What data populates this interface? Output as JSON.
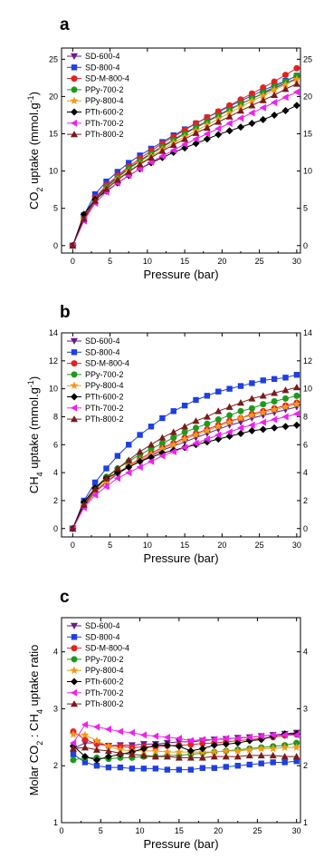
{
  "colors": {
    "SD-600-4": "#6a1a8a",
    "SD-800-4": "#1f3fe0",
    "SD-M-800-4": "#e32222",
    "PPy-700-2": "#1c9a1c",
    "PPy-800-4": "#f19a1a",
    "PTh-600-2": "#000000",
    "PTh-700-2": "#ee22ee",
    "PTh-800-2": "#7a1a1a"
  },
  "markers": {
    "SD-600-4": "triangle-down",
    "SD-800-4": "square",
    "SD-M-800-4": "circle",
    "PPy-700-2": "circle",
    "PPy-800-4": "star",
    "PTh-600-2": "diamond",
    "PTh-700-2": "triangle-left",
    "PTh-800-2": "triangle-up"
  },
  "chart_data": [
    {
      "type": "line",
      "panel": "a",
      "xlabel": "Pressure (bar)",
      "ylabel_parts": [
        "CO",
        "2",
        " uptake (mmol.g",
        "-1",
        ")"
      ],
      "xlim": [
        -1.5,
        30.5
      ],
      "ylim": [
        -1,
        26.5
      ],
      "xticks": [
        0,
        5,
        10,
        15,
        20,
        25,
        30
      ],
      "yticks": [
        0,
        5,
        10,
        15,
        20,
        25
      ],
      "right_ticks": [
        "0",
        "5",
        "10",
        "15",
        "20",
        "25"
      ],
      "legend_position": "top-left",
      "x": [
        0,
        1.5,
        3,
        4.5,
        6,
        7.5,
        9,
        10.5,
        12,
        13.5,
        15,
        16.5,
        18,
        19.5,
        21,
        22.5,
        24,
        25.5,
        27,
        28.5,
        30
      ],
      "series": [
        {
          "name": "SD-600-4",
          "values": [
            0,
            3.8,
            6.3,
            7.9,
            9.2,
            10.4,
            11.4,
            12.4,
            13.3,
            14.2,
            15.1,
            15.9,
            16.7,
            17.5,
            18.3,
            19.0,
            19.7,
            20.4,
            21.1,
            21.8,
            22.4
          ]
        },
        {
          "name": "SD-800-4",
          "values": [
            0,
            4.1,
            6.9,
            8.6,
            9.9,
            11.1,
            12.1,
            13.0,
            13.9,
            14.8,
            15.6,
            16.4,
            17.2,
            17.9,
            18.7,
            19.4,
            20.1,
            20.8,
            21.5,
            22.1,
            22.8
          ]
        },
        {
          "name": "SD-M-800-4",
          "values": [
            0,
            3.8,
            6.4,
            8.1,
            9.4,
            10.6,
            11.7,
            12.7,
            13.7,
            14.6,
            15.5,
            16.4,
            17.2,
            18.0,
            18.8,
            19.6,
            20.4,
            21.2,
            22.0,
            22.9,
            23.8
          ]
        },
        {
          "name": "PPy-700-2",
          "values": [
            0,
            3.6,
            6.1,
            7.8,
            9.1,
            10.3,
            11.3,
            12.3,
            13.2,
            14.1,
            15.0,
            15.8,
            16.6,
            17.4,
            18.2,
            19.0,
            19.7,
            20.5,
            21.3,
            22.0,
            22.8
          ]
        },
        {
          "name": "PPy-800-4",
          "values": [
            0,
            3.5,
            6.0,
            7.6,
            8.9,
            10.0,
            11.0,
            12.0,
            12.9,
            13.8,
            14.6,
            15.4,
            16.2,
            17.0,
            17.8,
            18.6,
            19.4,
            20.1,
            20.9,
            21.6,
            22.3
          ]
        },
        {
          "name": "PTh-600-2",
          "values": [
            0,
            4.2,
            6.2,
            7.3,
            8.4,
            9.4,
            10.3,
            11.1,
            11.8,
            12.5,
            13.1,
            13.7,
            14.3,
            14.9,
            15.4,
            15.9,
            16.4,
            16.9,
            17.5,
            18.1,
            18.8
          ]
        },
        {
          "name": "PTh-700-2",
          "values": [
            0,
            3.3,
            5.7,
            7.2,
            8.4,
            9.4,
            10.3,
            11.2,
            12.0,
            12.8,
            13.6,
            14.3,
            15.0,
            15.7,
            16.4,
            17.1,
            17.8,
            18.5,
            19.2,
            19.9,
            20.6
          ]
        },
        {
          "name": "PTh-800-2",
          "values": [
            0,
            3.6,
            6.0,
            7.6,
            8.8,
            9.9,
            10.9,
            11.8,
            12.7,
            13.5,
            14.3,
            15.1,
            15.8,
            16.6,
            17.3,
            18.1,
            18.8,
            19.5,
            20.2,
            21.0,
            21.7
          ]
        }
      ]
    },
    {
      "type": "line",
      "panel": "b",
      "xlabel": "Pressure (bar)",
      "ylabel_parts": [
        "CH",
        "4",
        " uptake (mmol.g",
        "-1",
        ")"
      ],
      "xlim": [
        -1.5,
        30.5
      ],
      "ylim": [
        -0.6,
        14
      ],
      "xticks": [
        0,
        5,
        10,
        15,
        20,
        25,
        30
      ],
      "yticks": [
        0,
        2,
        4,
        6,
        8,
        10,
        12,
        14
      ],
      "right_ticks": [
        "0",
        "2",
        "4",
        "6",
        "8",
        "10",
        "12",
        "14"
      ],
      "legend_position": "top-left",
      "x": [
        0,
        1.5,
        3,
        4.5,
        6,
        7.5,
        9,
        10.5,
        12,
        13.5,
        15,
        16.5,
        18,
        19.5,
        21,
        22.5,
        24,
        25.5,
        27,
        28.5,
        30
      ],
      "series": [
        {
          "name": "SD-600-4",
          "values": [
            0,
            1.6,
            2.6,
            3.3,
            3.9,
            4.4,
            4.8,
            5.2,
            5.6,
            5.9,
            6.2,
            6.5,
            6.8,
            7.1,
            7.4,
            7.6,
            7.9,
            8.1,
            8.3,
            8.5,
            8.7
          ]
        },
        {
          "name": "SD-800-4",
          "values": [
            0,
            2.0,
            3.3,
            4.3,
            5.2,
            6.0,
            6.7,
            7.3,
            7.9,
            8.4,
            8.8,
            9.2,
            9.5,
            9.8,
            10.0,
            10.2,
            10.4,
            10.6,
            10.7,
            10.8,
            11.0
          ]
        },
        {
          "name": "SD-M-800-4",
          "values": [
            0,
            1.6,
            2.6,
            3.4,
            4.0,
            4.5,
            5.0,
            5.4,
            5.8,
            6.1,
            6.5,
            6.8,
            7.1,
            7.4,
            7.7,
            7.9,
            8.2,
            8.4,
            8.6,
            8.8,
            9.0
          ]
        },
        {
          "name": "PPy-700-2",
          "values": [
            0,
            1.8,
            2.9,
            3.7,
            4.3,
            4.8,
            5.3,
            5.7,
            6.1,
            6.5,
            6.9,
            7.2,
            7.5,
            7.8,
            8.1,
            8.4,
            8.6,
            8.9,
            9.1,
            9.3,
            9.5
          ]
        },
        {
          "name": "PPy-800-4",
          "values": [
            0,
            1.7,
            2.7,
            3.4,
            4.0,
            4.5,
            4.9,
            5.3,
            5.7,
            6.0,
            6.4,
            6.7,
            7.0,
            7.3,
            7.6,
            7.9,
            8.1,
            8.3,
            8.5,
            8.7,
            8.9
          ]
        },
        {
          "name": "PTh-600-2",
          "values": [
            0,
            1.9,
            2.9,
            3.6,
            4.0,
            4.4,
            4.8,
            5.1,
            5.4,
            5.6,
            5.8,
            6.0,
            6.2,
            6.4,
            6.6,
            6.8,
            7.0,
            7.1,
            7.2,
            7.3,
            7.4
          ]
        },
        {
          "name": "PTh-700-2",
          "values": [
            0,
            1.5,
            2.4,
            3.0,
            3.6,
            4.0,
            4.4,
            4.8,
            5.2,
            5.5,
            5.8,
            6.1,
            6.4,
            6.7,
            6.9,
            7.2,
            7.4,
            7.6,
            7.8,
            8.0,
            8.2
          ]
        },
        {
          "name": "PTh-800-2",
          "values": [
            0,
            1.7,
            2.8,
            3.6,
            4.3,
            4.9,
            5.5,
            6.0,
            6.5,
            6.9,
            7.3,
            7.7,
            8.0,
            8.4,
            8.7,
            9.0,
            9.3,
            9.5,
            9.7,
            9.9,
            10.1
          ]
        }
      ]
    },
    {
      "type": "line",
      "panel": "c",
      "xlabel": "Pressure (bar)",
      "ylabel_parts": [
        "Molar CO",
        "2",
        " : CH",
        "4",
        " uptake ratio"
      ],
      "xlim": [
        0,
        30.5
      ],
      "ylim": [
        1,
        4.6
      ],
      "xticks": [
        0,
        5,
        10,
        15,
        20,
        25,
        30
      ],
      "yticks": [
        1,
        2,
        3,
        4
      ],
      "right_ticks": [
        "1",
        "2",
        "3",
        "4"
      ],
      "legend_position": "top-left",
      "x": [
        1.5,
        3,
        4.5,
        6,
        7.5,
        9,
        10.5,
        12,
        13.5,
        15,
        16.5,
        18,
        19.5,
        21,
        22.5,
        24,
        25.5,
        27,
        28.5,
        30
      ],
      "series": [
        {
          "name": "SD-600-4",
          "values": [
            2.3,
            2.4,
            2.4,
            2.35,
            2.36,
            2.36,
            2.38,
            2.38,
            2.4,
            2.42,
            2.42,
            2.44,
            2.46,
            2.47,
            2.49,
            2.5,
            2.52,
            2.54,
            2.56,
            2.58
          ]
        },
        {
          "name": "SD-800-4",
          "values": [
            2.2,
            2.06,
            2.0,
            1.97,
            1.97,
            1.95,
            1.95,
            1.95,
            1.93,
            1.93,
            1.93,
            1.96,
            1.96,
            1.98,
            2.0,
            2.02,
            2.04,
            2.06,
            2.06,
            2.08
          ]
        },
        {
          "name": "SD-M-800-4",
          "values": [
            2.6,
            2.46,
            2.38,
            2.35,
            2.34,
            2.32,
            2.33,
            2.33,
            2.35,
            2.36,
            2.37,
            2.39,
            2.4,
            2.42,
            2.44,
            2.46,
            2.48,
            2.5,
            2.53,
            2.55
          ]
        },
        {
          "name": "PPy-700-2",
          "values": [
            2.1,
            2.14,
            2.14,
            2.12,
            2.14,
            2.14,
            2.16,
            2.16,
            2.18,
            2.18,
            2.2,
            2.22,
            2.24,
            2.26,
            2.28,
            2.3,
            2.32,
            2.34,
            2.36,
            2.4
          ]
        },
        {
          "name": "PPy-800-4",
          "values": [
            2.55,
            2.54,
            2.44,
            2.34,
            2.28,
            2.26,
            2.26,
            2.26,
            2.24,
            2.24,
            2.24,
            2.24,
            2.24,
            2.26,
            2.26,
            2.28,
            2.3,
            2.3,
            2.32,
            2.32
          ]
        },
        {
          "name": "PTh-600-2",
          "values": [
            2.35,
            2.16,
            2.1,
            2.16,
            2.2,
            2.24,
            2.3,
            2.36,
            2.36,
            2.34,
            2.26,
            2.3,
            2.36,
            2.38,
            2.4,
            2.44,
            2.46,
            2.52,
            2.56,
            2.56
          ]
        },
        {
          "name": "PTh-700-2",
          "values": [
            2.4,
            2.72,
            2.68,
            2.64,
            2.6,
            2.58,
            2.54,
            2.52,
            2.5,
            2.48,
            2.44,
            2.46,
            2.46,
            2.48,
            2.48,
            2.5,
            2.52,
            2.54,
            2.54,
            2.54
          ]
        },
        {
          "name": "PTh-800-2",
          "values": [
            2.3,
            2.32,
            2.28,
            2.26,
            2.22,
            2.2,
            2.18,
            2.16,
            2.16,
            2.14,
            2.14,
            2.14,
            2.16,
            2.16,
            2.16,
            2.18,
            2.18,
            2.18,
            2.16,
            2.16
          ]
        }
      ]
    }
  ]
}
